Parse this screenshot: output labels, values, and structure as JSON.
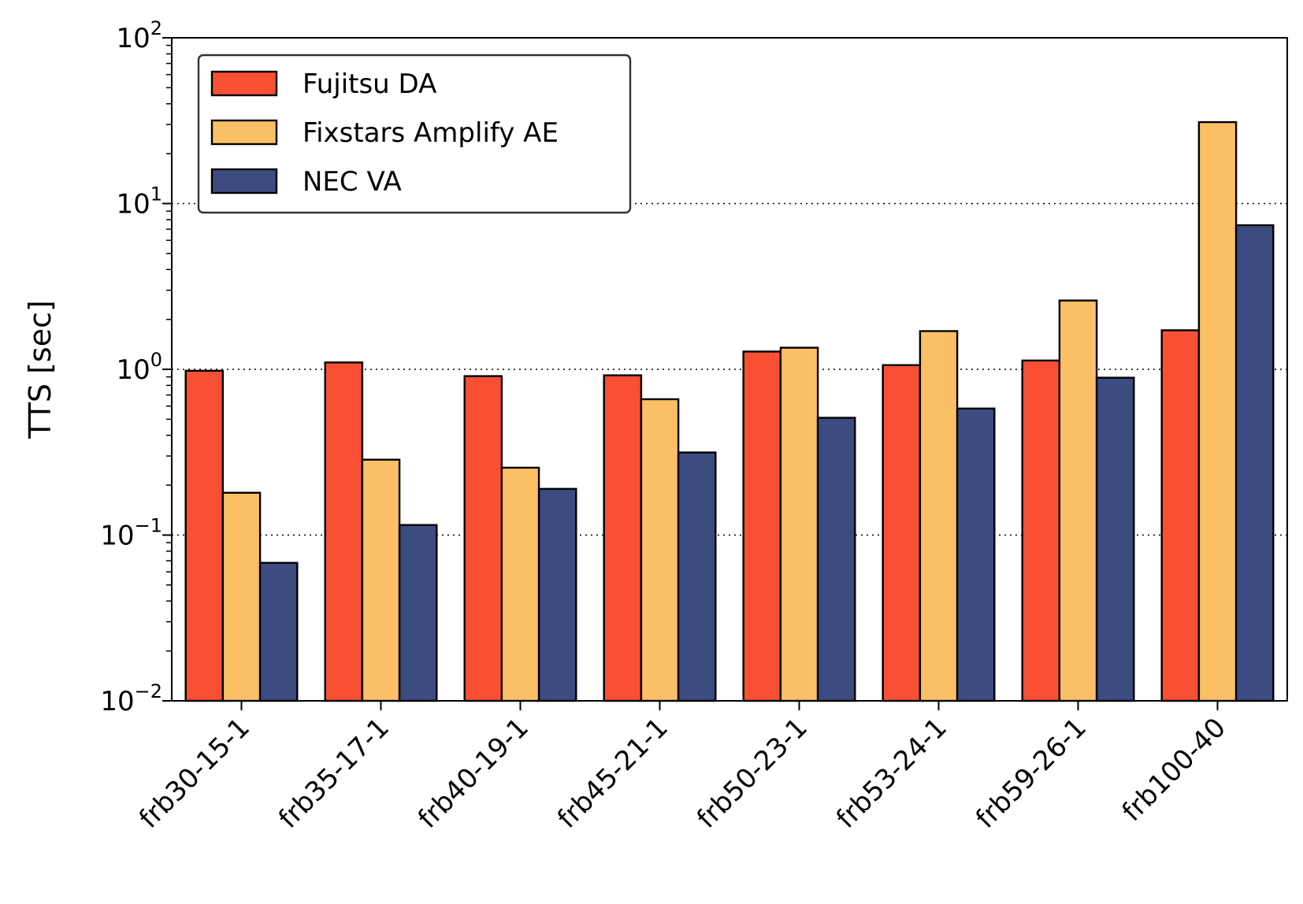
{
  "chart_data": {
    "type": "bar",
    "title": "",
    "xlabel": "",
    "ylabel": "TTS [sec]",
    "yscale": "log",
    "ylim": [
      0.01,
      100
    ],
    "yticks": [
      {
        "value": 0.01,
        "base": "10",
        "exp": "−2"
      },
      {
        "value": 0.1,
        "base": "10",
        "exp": "−1"
      },
      {
        "value": 1,
        "base": "10",
        "exp": "0"
      },
      {
        "value": 10,
        "base": "10",
        "exp": "1"
      },
      {
        "value": 100,
        "base": "10",
        "exp": "2"
      }
    ],
    "grid": "horizontal dotted at major ticks",
    "legend_position": "top-left",
    "categories": [
      "frb30-15-1",
      "frb35-17-1",
      "frb40-19-1",
      "frb45-21-1",
      "frb50-23-1",
      "frb53-24-1",
      "frb59-26-1",
      "frb100-40"
    ],
    "series": [
      {
        "name": "Fujitsu DA",
        "color": "#f95035",
        "values": [
          0.98,
          1.1,
          0.91,
          0.92,
          1.28,
          1.06,
          1.13,
          1.72
        ]
      },
      {
        "name": "Fixstars Amplify AE",
        "color": "#fbc066",
        "values": [
          0.18,
          0.285,
          0.255,
          0.66,
          1.35,
          1.7,
          2.6,
          31.0
        ]
      },
      {
        "name": "NEC VA",
        "color": "#3c4b80",
        "values": [
          0.068,
          0.115,
          0.19,
          0.315,
          0.51,
          0.58,
          0.89,
          7.4
        ]
      }
    ]
  }
}
